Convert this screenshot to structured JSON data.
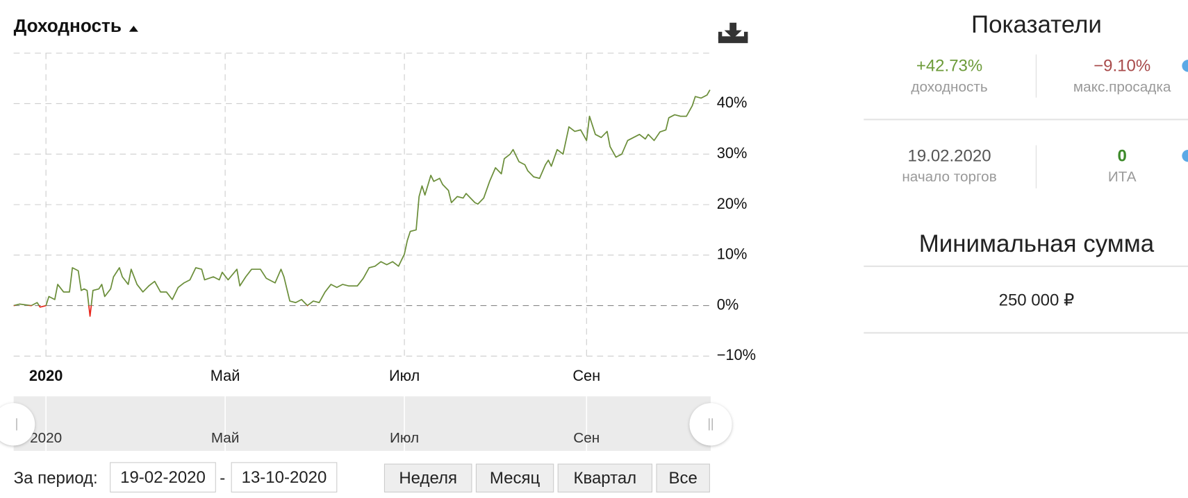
{
  "chart_data": {
    "type": "line",
    "title": "Доходность",
    "x": [
      "2020-02-19",
      "2020-02-21",
      "2020-02-25",
      "2020-02-27",
      "2020-02-28",
      "2020-03-01",
      "2020-03-02",
      "2020-03-04",
      "2020-03-05",
      "2020-03-07",
      "2020-03-09",
      "2020-03-10",
      "2020-03-12",
      "2020-03-13",
      "2020-03-14",
      "2020-03-15",
      "2020-03-16",
      "2020-03-17",
      "2020-03-19",
      "2020-03-20",
      "2020-03-21",
      "2020-03-23",
      "2020-03-24",
      "2020-03-26",
      "2020-03-27",
      "2020-03-29",
      "2020-03-30",
      "2020-04-01",
      "2020-04-03",
      "2020-04-05",
      "2020-04-07",
      "2020-04-09",
      "2020-04-11",
      "2020-04-13",
      "2020-04-15",
      "2020-04-17",
      "2020-04-19",
      "2020-04-21",
      "2020-04-23",
      "2020-04-24",
      "2020-04-27",
      "2020-04-29",
      "2020-04-30",
      "2020-05-02",
      "2020-05-05",
      "2020-05-06",
      "2020-05-08",
      "2020-05-10",
      "2020-05-13",
      "2020-05-15",
      "2020-05-18",
      "2020-05-20",
      "2020-05-21",
      "2020-05-23",
      "2020-05-25",
      "2020-05-27",
      "2020-05-29",
      "2020-05-31",
      "2020-06-02",
      "2020-06-04",
      "2020-06-06",
      "2020-06-08",
      "2020-06-10",
      "2020-06-12",
      "2020-06-15",
      "2020-06-17",
      "2020-06-19",
      "2020-06-21",
      "2020-06-23",
      "2020-06-25",
      "2020-06-27",
      "2020-06-29",
      "2020-07-01",
      "2020-07-02",
      "2020-07-03",
      "2020-07-05",
      "2020-07-06",
      "2020-07-07",
      "2020-07-08",
      "2020-07-10",
      "2020-07-11",
      "2020-07-13",
      "2020-07-14",
      "2020-07-16",
      "2020-07-17",
      "2020-07-19",
      "2020-07-21",
      "2020-07-22",
      "2020-07-25",
      "2020-07-26",
      "2020-07-28",
      "2020-07-30",
      "2020-08-01",
      "2020-08-03",
      "2020-08-04",
      "2020-08-06",
      "2020-08-07",
      "2020-08-09",
      "2020-08-11",
      "2020-08-12",
      "2020-08-14",
      "2020-08-16",
      "2020-08-18",
      "2020-08-19",
      "2020-08-20",
      "2020-08-22",
      "2020-08-24",
      "2020-08-26",
      "2020-08-28",
      "2020-08-30",
      "2020-09-01",
      "2020-09-02",
      "2020-09-04",
      "2020-09-06",
      "2020-09-08",
      "2020-09-09",
      "2020-09-11",
      "2020-09-13",
      "2020-09-15",
      "2020-09-17",
      "2020-09-19",
      "2020-09-21",
      "2020-09-22",
      "2020-09-24",
      "2020-09-26",
      "2020-09-28",
      "2020-09-29",
      "2020-10-01",
      "2020-10-03",
      "2020-10-05",
      "2020-10-07",
      "2020-10-08",
      "2020-10-10",
      "2020-10-12",
      "2020-10-13"
    ],
    "series": [
      {
        "color": "#6b8e3a",
        "negative_color": "#e8281e",
        "values": [
          0,
          0.3,
          0,
          0.6,
          -0.3,
          0,
          1.8,
          1.2,
          4.2,
          2.7,
          2.7,
          7.5,
          6.9,
          3.0,
          3.3,
          3.0,
          -2.1,
          3.0,
          3.3,
          4.2,
          1.8,
          3.3,
          5.7,
          7.5,
          5.7,
          4.2,
          7.2,
          4.2,
          2.7,
          3.9,
          4.8,
          2.7,
          2.7,
          1.2,
          3.6,
          4.5,
          5.1,
          7.5,
          7.2,
          5.1,
          5.7,
          5.1,
          6.6,
          5.1,
          7.2,
          3.9,
          5.7,
          7.2,
          7.2,
          5.4,
          4.5,
          7.2,
          5.7,
          0.9,
          0.6,
          1.2,
          0,
          0.9,
          0.6,
          2.7,
          4.2,
          3.6,
          4.2,
          3.9,
          3.9,
          5.4,
          7.5,
          7.8,
          8.7,
          8.1,
          8.7,
          7.8,
          10.2,
          12.9,
          14.7,
          15.0,
          21.6,
          23.7,
          21.9,
          25.8,
          24.6,
          25.2,
          24.0,
          22.8,
          20.4,
          21.6,
          21.3,
          22.2,
          20.4,
          20.1,
          21.3,
          24.6,
          27.3,
          26.1,
          29.1,
          30.0,
          30.9,
          28.5,
          27.9,
          26.7,
          25.5,
          25.2,
          27.9,
          28.8,
          27.6,
          30.9,
          30.0,
          35.4,
          34.5,
          34.8,
          32.7,
          37.5,
          33.9,
          33.3,
          34.5,
          31.5,
          29.4,
          30.0,
          32.7,
          33.3,
          33.9,
          33.0,
          33.9,
          32.7,
          34.4,
          34.8,
          37.2,
          37.8,
          37.5,
          37.5,
          39.6,
          41.4,
          41.1,
          41.7,
          42.73
        ]
      }
    ],
    "ylim": [
      -10,
      50
    ],
    "yticks": [
      {
        "value": -10,
        "label": "−10%"
      },
      {
        "value": 0,
        "label": "0%"
      },
      {
        "value": 10,
        "label": "10%"
      },
      {
        "value": 20,
        "label": "20%"
      },
      {
        "value": 30,
        "label": "30%"
      },
      {
        "value": 40,
        "label": "40%"
      }
    ],
    "xticks": [
      {
        "value": "2020-03-01",
        "label": "2020"
      },
      {
        "value": "2020-05-01",
        "label": "Май"
      },
      {
        "value": "2020-07-01",
        "label": "Июл"
      },
      {
        "value": "2020-09-01",
        "label": "Сен"
      }
    ],
    "grid": true
  },
  "panel": {
    "title": "Показатели",
    "metrics": [
      {
        "value": "+42.73%",
        "label": "доходность"
      },
      {
        "value": "−9.10%",
        "label": "макс.просадка"
      },
      {
        "value": "19.02.2020",
        "label": "начало торгов"
      },
      {
        "value": "0",
        "label": "ИТА"
      }
    ],
    "min_sum": {
      "title": "Минимальная сумма",
      "value": "250 000 ₽"
    }
  },
  "controls": {
    "period_label": "За период:",
    "from": "19-02-2020",
    "separator": "-",
    "to": "13-10-2020",
    "buttons": [
      "Неделя",
      "Месяц",
      "Квартал",
      "Все"
    ]
  }
}
